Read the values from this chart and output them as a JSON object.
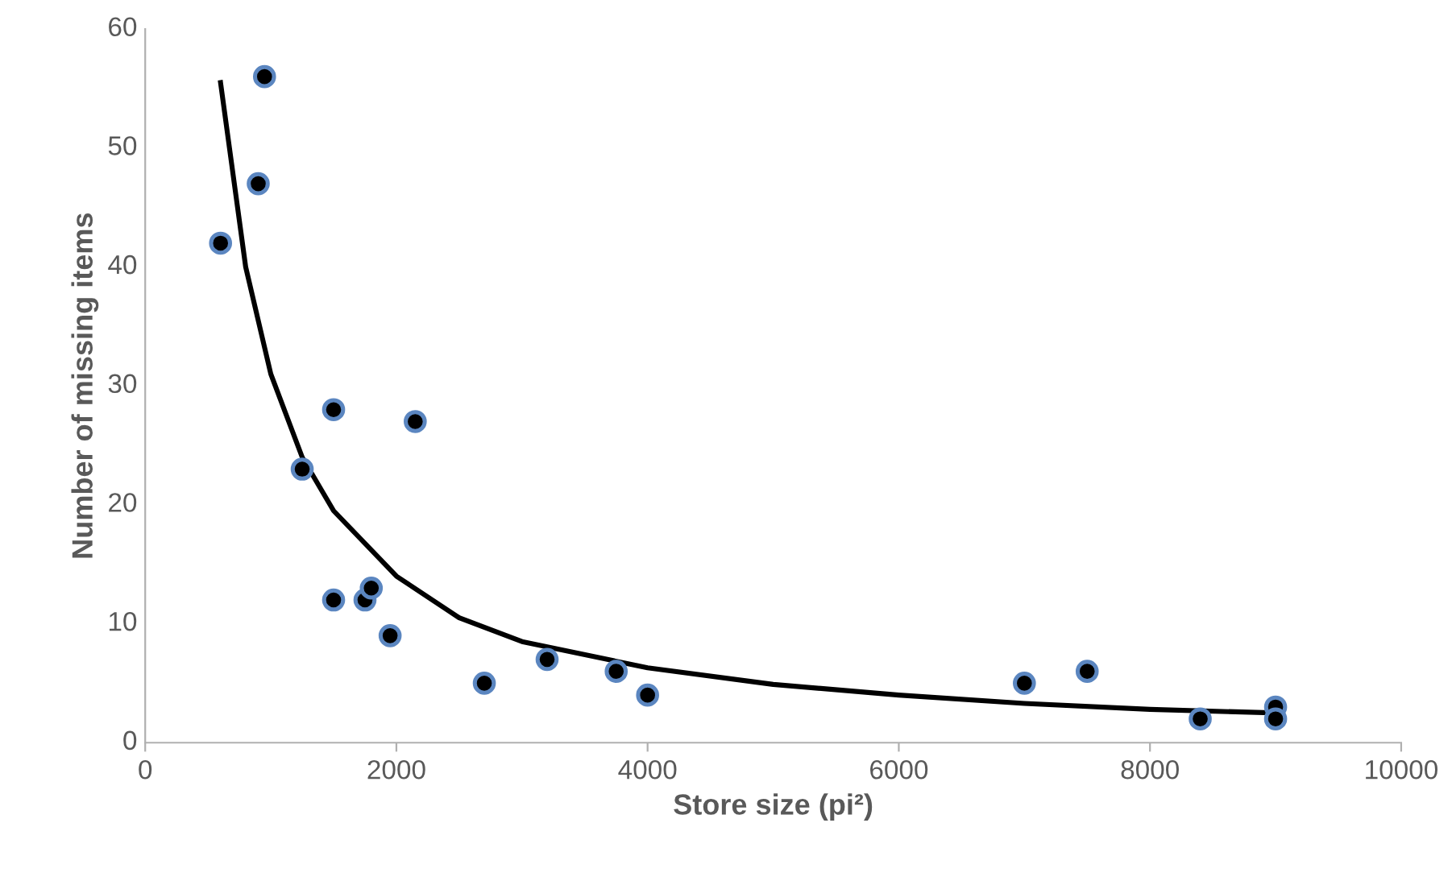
{
  "chart_data": {
    "type": "scatter",
    "xlabel": "Store size (pi²)",
    "ylabel": "Number of missing items",
    "xlim": [
      0,
      10000
    ],
    "xticks": [
      0,
      2000,
      4000,
      6000,
      8000,
      10000
    ],
    "ylim": [
      0,
      60
    ],
    "yticks": [
      0,
      10,
      20,
      30,
      40,
      50,
      60
    ],
    "grid": false,
    "series": [
      {
        "marker": "circle",
        "color": "#000000",
        "x": [
          600,
          900,
          950,
          1250,
          1500,
          1500,
          1750,
          1800,
          1950,
          2150,
          2700,
          3200,
          3750,
          4000,
          7000,
          7500,
          8400,
          9000,
          9000
        ],
        "values": [
          42,
          47,
          56,
          23,
          28,
          12,
          12,
          13,
          9,
          27,
          5,
          7,
          6,
          4,
          5,
          6,
          2,
          3,
          2
        ]
      },
      {
        "type": "line",
        "color": "#000000",
        "line_style": "solid",
        "x": [
          600,
          800,
          1000,
          1250,
          1500,
          2000,
          2500,
          3000,
          4000,
          5000,
          6000,
          7000,
          8000,
          9000
        ],
        "values": [
          55.5,
          40,
          31,
          24,
          19.5,
          14,
          10.5,
          8.5,
          6.3,
          4.9,
          4.0,
          3.3,
          2.8,
          2.5
        ]
      }
    ]
  }
}
